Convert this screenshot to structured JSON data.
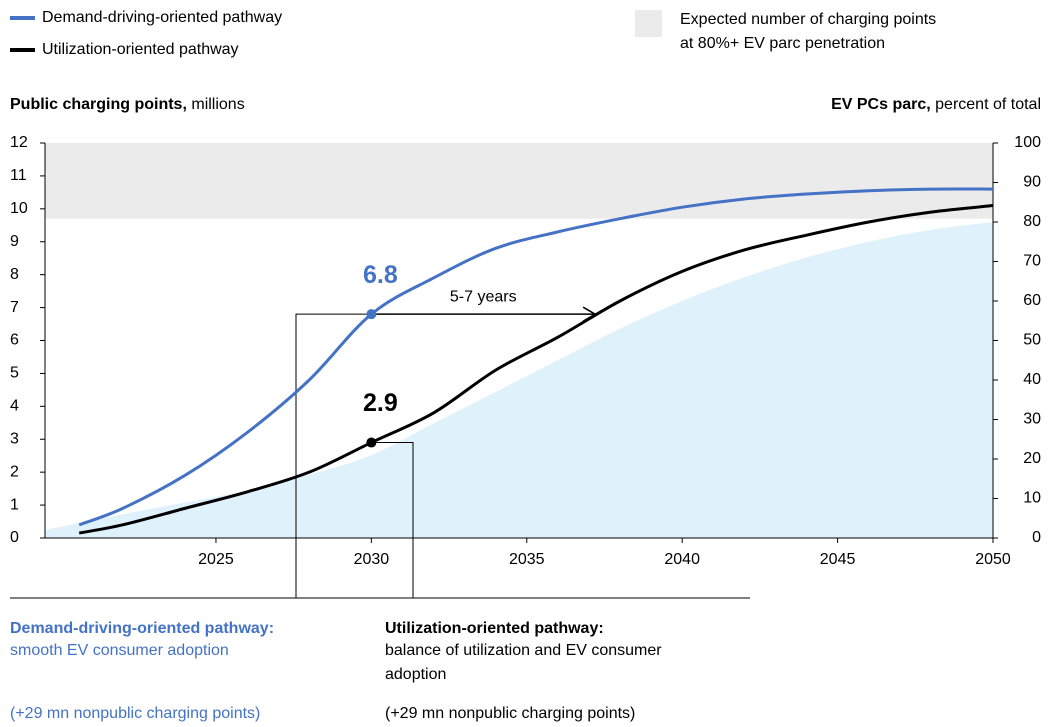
{
  "chart_data": {
    "type": "line",
    "legend": [
      {
        "name": "Demand-driving-oriented pathway",
        "color": "#4472c4"
      },
      {
        "name": "Utilization-oriented pathway",
        "color": "#000000"
      }
    ],
    "band": {
      "label_lines": [
        "Expected number of charging points",
        "at 80%+ EV parc penetration"
      ],
      "range": [
        9.7,
        12
      ],
      "color": "#ebebeb"
    },
    "y_label": {
      "bold": "Public charging points,",
      "rest": "millions"
    },
    "y2_label": {
      "bold": "EV PCs parc,",
      "rest": "percent of total"
    },
    "xlim": [
      2019.5,
      2050
    ],
    "xticks": [
      2025,
      2030,
      2035,
      2040,
      2045,
      2050
    ],
    "ylim": [
      0,
      12
    ],
    "yticks": [
      0,
      1,
      2,
      3,
      4,
      5,
      6,
      7,
      8,
      9,
      10,
      11,
      12
    ],
    "y2lim": [
      0,
      100
    ],
    "y2ticks": [
      0,
      10,
      20,
      30,
      40,
      50,
      60,
      70,
      80,
      90,
      100
    ],
    "x": [
      2020.6,
      2022,
      2024,
      2026,
      2028,
      2030,
      2032,
      2034,
      2036,
      2038,
      2040,
      2042,
      2044,
      2046,
      2048,
      2050
    ],
    "series": [
      {
        "name": "Demand-driving-oriented pathway",
        "color": "#4472c4",
        "values": [
          0.4,
          0.9,
          1.9,
          3.2,
          4.8,
          6.8,
          7.9,
          8.8,
          9.3,
          9.7,
          10.05,
          10.3,
          10.45,
          10.55,
          10.6,
          10.6
        ]
      },
      {
        "name": "Utilization-oriented pathway",
        "color": "#000000",
        "values": [
          0.15,
          0.4,
          0.9,
          1.4,
          2.0,
          2.9,
          3.8,
          5.1,
          6.1,
          7.2,
          8.1,
          8.75,
          9.2,
          9.6,
          9.9,
          10.1
        ]
      }
    ],
    "area": {
      "color": "#dff1fb",
      "axis": "y2",
      "x": [
        2019.5,
        2022,
        2024,
        2026,
        2028,
        2030,
        2032,
        2034,
        2036,
        2038,
        2040,
        2042,
        2044,
        2046,
        2048,
        2050
      ],
      "values": [
        2,
        6,
        9,
        12,
        16,
        21,
        29,
        37,
        45,
        53,
        60,
        66,
        71,
        75,
        78,
        80
      ]
    },
    "highlights": [
      {
        "x": 2030,
        "value": 6.8,
        "color": "#4472c4"
      },
      {
        "x": 2030,
        "value": 2.9,
        "color": "#000000"
      }
    ],
    "arrow": {
      "text": "5-7 years",
      "x_to": 2037.2
    },
    "callouts": [
      {
        "title": "Demand-driving-oriented pathway:",
        "lines": [
          "smooth EV consumer adoption"
        ],
        "note": "(+29 mn nonpublic charging points)"
      },
      {
        "title": "Utilization-oriented pathway:",
        "lines": [
          "balance of utilization and EV consumer",
          "adoption"
        ],
        "note": "(+29 mn nonpublic charging points)"
      }
    ]
  }
}
